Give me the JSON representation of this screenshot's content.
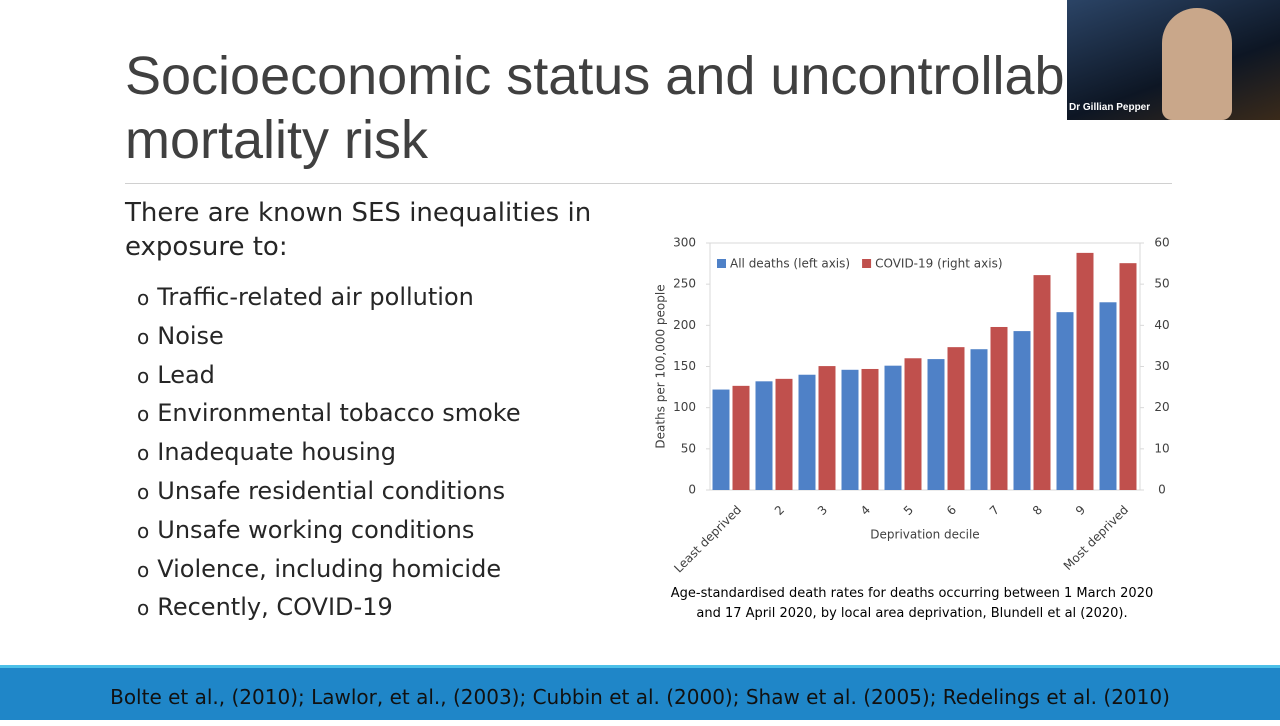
{
  "slide": {
    "title_lines": [
      "Socioeconomic status and uncontrollable",
      "mortality risk"
    ],
    "intro": "There are known SES inequalities in exposure to:",
    "bullets": [
      "Traffic-related air pollution",
      "Noise",
      "Lead",
      "Environmental tobacco smoke",
      "Inadequate housing",
      "Unsafe residential conditions",
      "Unsafe working conditions",
      "Violence, including homicide",
      "Recently, COVID-19"
    ],
    "caption_lines": [
      "Age-standardised death rates for deaths occurring between 1 March 2020",
      "and 17 April 2020, by local area deprivation, Blundell et al (2020)."
    ],
    "footer": "Bolte et al., (2010);  Lawlor, et al., (2003); Cubbin et al. (2000); Shaw et al. (2005); Redelings et al. (2010)",
    "video_label": "Dr Gillian Pepper"
  },
  "chart_data": {
    "type": "bar",
    "x_label": "Deprivation decile",
    "y_label": "Deaths per 100,000 people",
    "categories": [
      "Least deprived",
      "2",
      "3",
      "4",
      "5",
      "6",
      "7",
      "8",
      "9",
      "Most deprived"
    ],
    "series": [
      {
        "name": "All deaths (left axis)",
        "color": "#4f81c7",
        "values": [
          122,
          132,
          140,
          146,
          151,
          159,
          171,
          193,
          216,
          228
        ]
      },
      {
        "name": "COVID-19 (right axis)",
        "color": "#c0504d",
        "axis": "y2",
        "values": [
          25.3,
          27,
          30.1,
          29.4,
          32,
          34.7,
          39.6,
          52.2,
          57.6,
          55.1
        ]
      }
    ],
    "ylim": [
      0,
      300
    ],
    "yticks": [
      0,
      50,
      100,
      150,
      200,
      250,
      300
    ],
    "y2lim": [
      0,
      60
    ],
    "y2ticks": [
      0,
      10,
      20,
      30,
      40,
      50,
      60
    ],
    "legend": "top-left"
  }
}
